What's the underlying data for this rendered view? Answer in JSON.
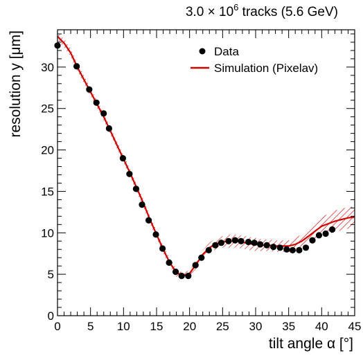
{
  "chart_data": {
    "type": "scatter",
    "title": "3.0 × 10⁶ tracks (5.6 GeV)",
    "title_parts": {
      "prefix": "3.0 × 10",
      "exponent": "6",
      "suffix": " tracks (5.6 GeV)"
    },
    "xlabel": "tilt angle α [°]",
    "ylabel": "resolution y  [μm]",
    "xlim": [
      0,
      45
    ],
    "ylim": [
      0,
      34.5
    ],
    "x_ticks": [
      0,
      5,
      10,
      15,
      20,
      25,
      30,
      35,
      40,
      45
    ],
    "y_ticks": [
      0,
      5,
      10,
      15,
      20,
      25,
      30
    ],
    "x_minor_step": 1,
    "y_minor_step": 1,
    "grid": false,
    "legend_position": "top-right",
    "series": [
      {
        "name": "Data",
        "kind": "points",
        "color": "#000000",
        "x": [
          0,
          2.9,
          4.8,
          5.9,
          7.0,
          7.8,
          9.9,
          10.9,
          11.9,
          12.8,
          13.8,
          14.9,
          15.9,
          16.9,
          17.9,
          18.8,
          19.8,
          20.9,
          21.8,
          22.9,
          23.9,
          24.8,
          25.9,
          26.9,
          27.8,
          28.9,
          29.8,
          30.7,
          31.7,
          32.7,
          33.7,
          34.7,
          35.6,
          36.6,
          37.6,
          38.6,
          39.6,
          40.6,
          41.6
        ],
        "y": [
          32.6,
          30.1,
          27.3,
          25.7,
          24.4,
          22.6,
          19.0,
          17.1,
          15.3,
          13.4,
          11.5,
          9.8,
          8.1,
          6.4,
          5.3,
          4.8,
          4.8,
          6.1,
          7.0,
          7.9,
          8.5,
          8.8,
          9.0,
          9.1,
          9.0,
          8.9,
          8.8,
          8.6,
          8.5,
          8.3,
          8.2,
          8.0,
          7.9,
          7.9,
          8.2,
          9.1,
          9.7,
          9.9,
          10.4
        ]
      },
      {
        "name": "Simulation (Pixelav)",
        "kind": "band",
        "color": "#cc0000",
        "x": [
          0,
          1,
          2,
          3,
          4,
          5,
          6,
          7,
          8,
          9,
          10,
          11,
          12,
          13,
          14,
          15,
          16,
          17,
          18,
          19,
          20,
          21,
          22,
          23,
          24,
          25,
          26,
          27,
          28,
          29,
          30,
          31,
          32,
          33,
          34,
          35,
          36,
          37,
          38,
          39,
          40,
          41,
          42,
          43,
          44,
          45
        ],
        "y": [
          33.7,
          32.9,
          31.7,
          30.0,
          28.5,
          27.0,
          25.5,
          24.0,
          22.3,
          20.6,
          18.9,
          17.2,
          15.4,
          13.6,
          11.6,
          9.8,
          8.0,
          6.4,
          5.2,
          4.8,
          5.1,
          6.2,
          7.4,
          8.2,
          8.7,
          8.9,
          9.0,
          9.0,
          8.9,
          8.7,
          8.6,
          8.5,
          8.5,
          8.4,
          8.4,
          8.4,
          8.6,
          9.0,
          9.6,
          10.2,
          10.8,
          11.1,
          11.4,
          11.6,
          11.8,
          11.9
        ],
        "err": [
          0.5,
          0.5,
          0.5,
          0.5,
          0.5,
          0.5,
          0.5,
          0.5,
          0.5,
          0.5,
          0.5,
          0.5,
          0.5,
          0.5,
          0.5,
          0.5,
          0.5,
          0.5,
          0.5,
          0.4,
          0.4,
          0.5,
          0.5,
          0.6,
          0.7,
          0.7,
          0.8,
          0.8,
          0.8,
          0.8,
          0.8,
          0.7,
          0.7,
          0.7,
          0.7,
          0.7,
          0.8,
          0.8,
          0.9,
          1.0,
          1.1,
          1.2,
          1.3,
          1.3,
          1.3,
          1.3
        ]
      }
    ]
  }
}
